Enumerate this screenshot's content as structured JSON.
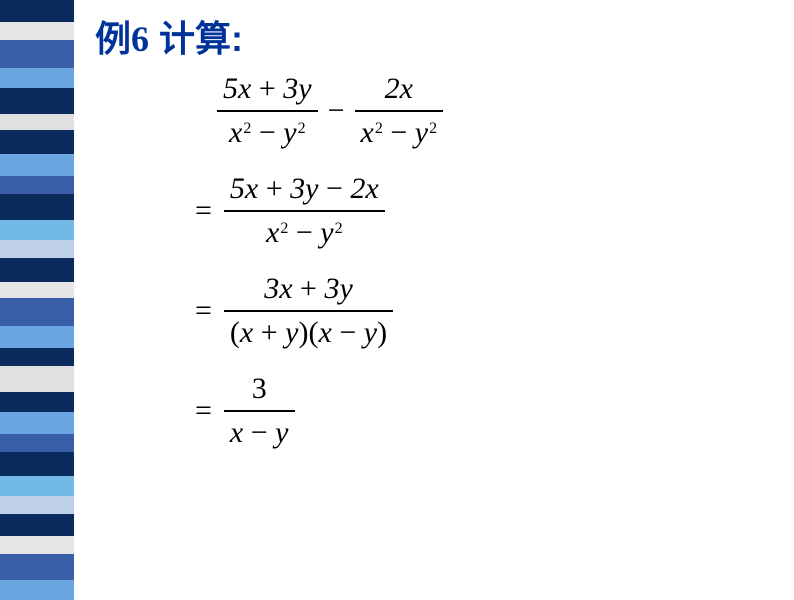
{
  "sidebar": {
    "stripes": [
      "#0a2a5c",
      "#e6e6e6",
      "#3a5fa8",
      "#6ca6e0",
      "#0a2a5c",
      "#e0e0e0",
      "#0a2a5c",
      "#6ca6e0",
      "#3a5fa8",
      "#0a2a5c",
      "#73b9e6",
      "#c0d0e8",
      "#0a2a5c",
      "#e6e6e6",
      "#3a5fa8",
      "#6ca6e0",
      "#0a2a5c",
      "#e0e0e0",
      "#0a2a5c",
      "#6ca6e0",
      "#3a5fa8",
      "#0a2a5c",
      "#73b9e6",
      "#c0d0e8",
      "#0a2a5c",
      "#e6e6e6",
      "#3a5fa8",
      "#6ca6e0"
    ],
    "heights": [
      22,
      18,
      28,
      20,
      26,
      16,
      24,
      22,
      18,
      26,
      20,
      18,
      24,
      16,
      28,
      22,
      18,
      26,
      20,
      22,
      18,
      24,
      20,
      18,
      22,
      18,
      26,
      20
    ]
  },
  "title": {
    "prefix": "例",
    "number": "6",
    "rest": "  计算:"
  },
  "math": {
    "line1": {
      "frac1_num": "5x + 3y",
      "frac1_den_a": "x",
      "frac1_den_b": "y",
      "frac2_num": "2x",
      "frac2_den_a": "x",
      "frac2_den_b": "y"
    },
    "line2": {
      "num": "5x + 3y − 2x",
      "den_a": "x",
      "den_b": "y"
    },
    "line3": {
      "num": "3x + 3y",
      "den": "(x + y)(x − y)"
    },
    "line4": {
      "num": "3",
      "den": "x − y"
    }
  },
  "colors": {
    "title": "#003399",
    "text": "#000000",
    "bg": "#ffffff"
  }
}
